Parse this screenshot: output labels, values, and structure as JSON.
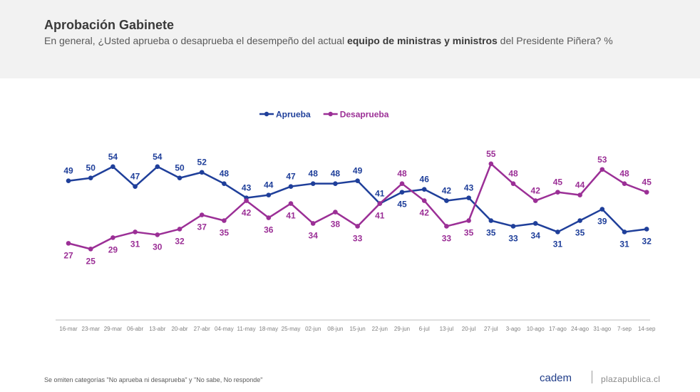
{
  "header": {
    "title": "Aprobación Gabinete",
    "subtitle_pre": "En general, ¿Usted aprueba o desaprueba el desempeño del actual ",
    "subtitle_bold": "equipo de ministras y ministros",
    "subtitle_post": " del Presidente Piñera? %"
  },
  "footer": {
    "note": "Se omiten categorías \"No aprueba ni desaprueba\" y \"No sabe, No responde\"",
    "brand": "cadem",
    "site": "plazapublica.cl"
  },
  "colors": {
    "aprueba": "#1f3f9a",
    "desaprueba": "#9b2f96",
    "axis": "#bfbfbf"
  },
  "chart_data": {
    "type": "line",
    "categories": [
      "16-mar",
      "23-mar",
      "29-mar",
      "06-abr",
      "13-abr",
      "20-abr",
      "27-abr",
      "04-may",
      "11-may",
      "18-may",
      "25-may",
      "02-jun",
      "08-jun",
      "15-jun",
      "22-jun",
      "29-jun",
      "6-jul",
      "13-jul",
      "20-jul",
      "27-jul",
      "3-ago",
      "10-ago",
      "17-ago",
      "24-ago",
      "31-ago",
      "7-sep",
      "14-sep"
    ],
    "series": [
      {
        "name": "Aprueba",
        "values": [
          49,
          50,
          54,
          47,
          54,
          50,
          52,
          48,
          43,
          44,
          47,
          48,
          48,
          49,
          41,
          45,
          46,
          42,
          43,
          35,
          33,
          34,
          31,
          35,
          39,
          31,
          32
        ]
      },
      {
        "name": "Desaprueba",
        "values": [
          27,
          25,
          29,
          31,
          30,
          32,
          37,
          35,
          42,
          36,
          41,
          34,
          38,
          33,
          41,
          48,
          42,
          33,
          35,
          55,
          48,
          42,
          45,
          44,
          53,
          48,
          45
        ]
      }
    ],
    "legend": "top-center",
    "ylim": [
      0,
      70
    ],
    "grid": false
  }
}
